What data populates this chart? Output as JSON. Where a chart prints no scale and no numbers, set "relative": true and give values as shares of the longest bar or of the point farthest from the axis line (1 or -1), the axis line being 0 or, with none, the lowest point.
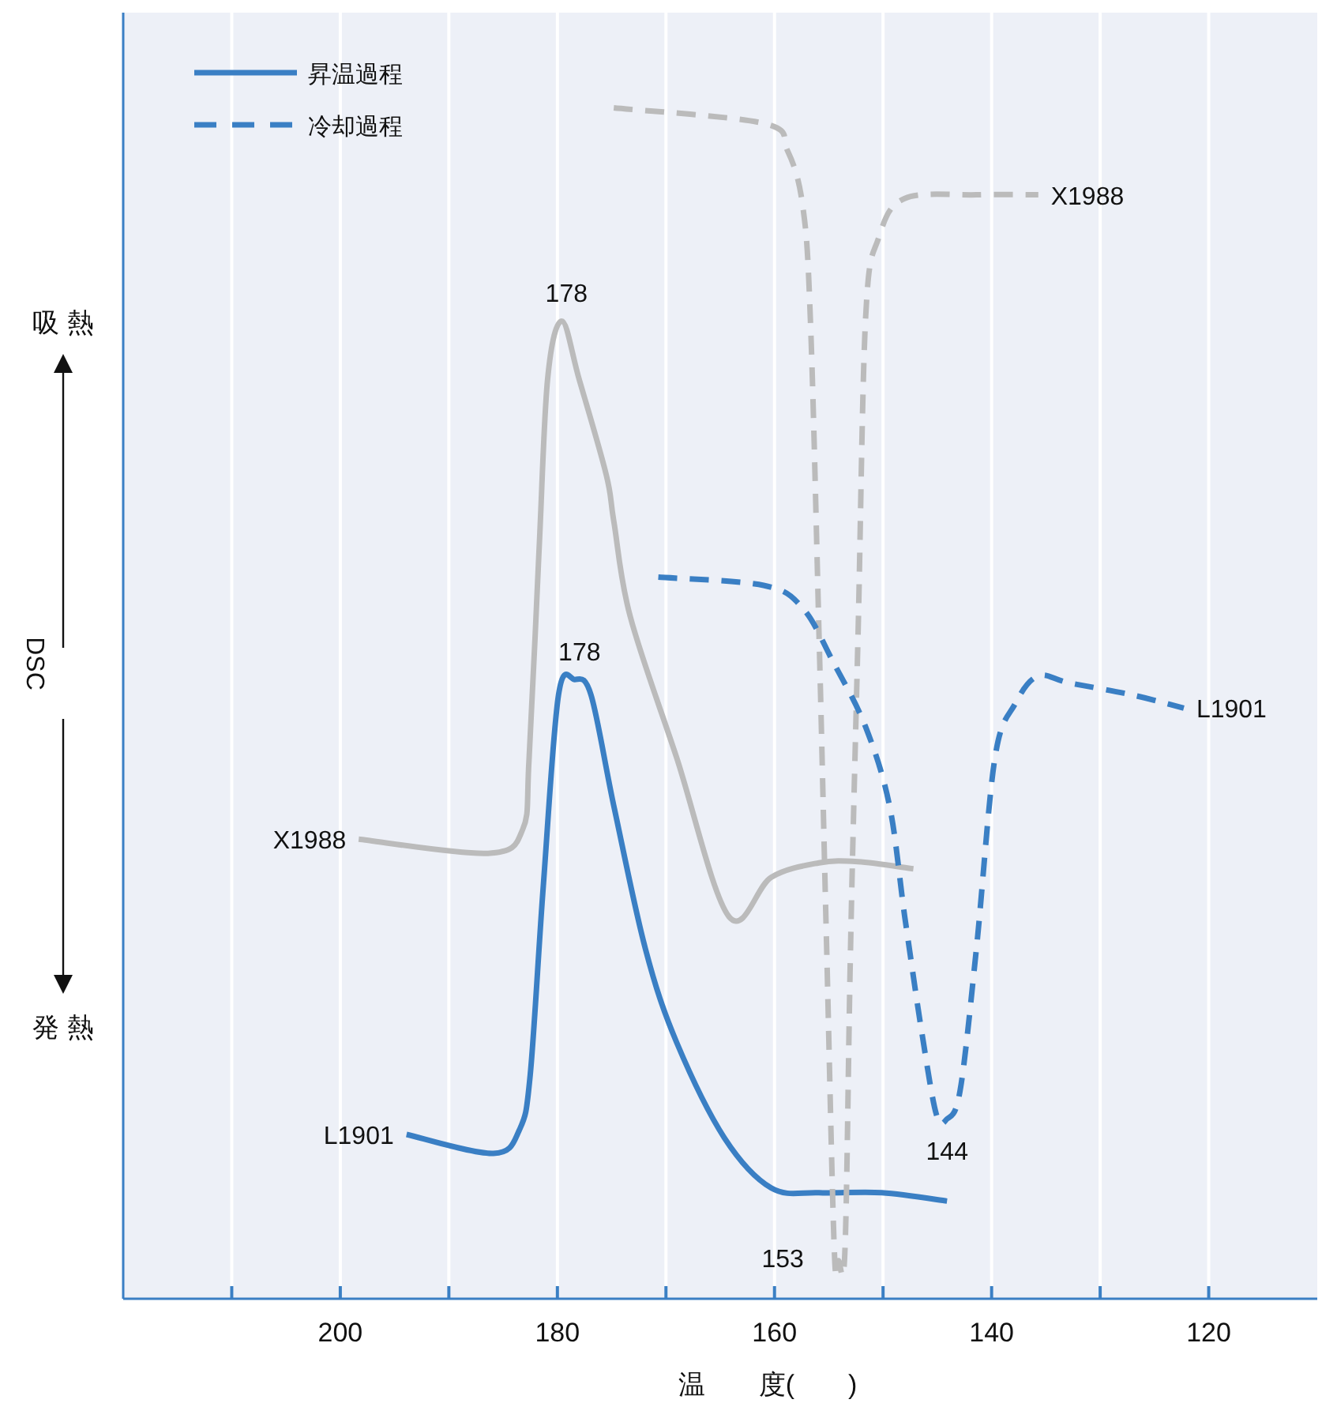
{
  "chart_data": {
    "type": "line",
    "relative": true,
    "xlabel": "温　　度(　　)",
    "ylabel": "DSC",
    "xlim": [
      220,
      110
    ],
    "xticks": [
      {
        "value": 210,
        "label": null
      },
      200,
      {
        "value": 190,
        "label": null
      },
      180,
      {
        "value": 170,
        "label": null
      },
      160,
      {
        "value": 150,
        "label": null
      },
      140,
      {
        "value": 130,
        "label": null
      },
      120
    ],
    "grid": "x",
    "legend": "top left",
    "marker": "none",
    "series": [
      {
        "name": "X1988",
        "color": "#bbbbbb",
        "line_style": "solid",
        "x": [
          198.3,
          186.4,
          183.2,
          182.6,
          181.7,
          180.9,
          179.6,
          178,
          175.5,
          174.8,
          173.3,
          169,
          164.2,
          160.3,
          155.9,
          152.3,
          147.2
        ],
        "values": [
          0.386,
          0.374,
          0.394,
          0.454,
          0.626,
          0.772,
          0.821,
          0.772,
          0.692,
          0.653,
          0.573,
          0.454,
          0.321,
          0.354,
          0.366,
          0.367,
          0.361
        ]
      },
      {
        "name": "L1901",
        "color": "#3a7fc4",
        "line_style": "solid",
        "x": [
          193.9,
          185.9,
          183.5,
          182.5,
          181.3,
          179.9,
          178.4,
          176.9,
          174.8,
          171.9,
          169,
          164.6,
          160.3,
          155.9,
          150.1,
          144.1
        ],
        "values": [
          0.138,
          0.122,
          0.142,
          0.188,
          0.347,
          0.507,
          0.52,
          0.507,
          0.414,
          0.294,
          0.215,
          0.135,
          0.093,
          0.089,
          0.089,
          0.082
        ]
      },
      {
        "name": "X1988",
        "color": "#bbbbbb",
        "line_style": "dashed",
        "x": [
          174.8,
          161,
          158.8,
          157.4,
          156.7,
          155.9,
          155.2,
          154.5,
          154.1,
          153.5,
          153,
          152.3,
          151.6,
          150.4,
          148,
          141.4,
          135.7
        ],
        "values": [
          1.0,
          0.987,
          0.964,
          0.918,
          0.825,
          0.56,
          0.294,
          0.042,
          0.032,
          0.042,
          0.294,
          0.56,
          0.825,
          0.891,
          0.924,
          0.927,
          0.927
        ]
      },
      {
        "name": "L1901",
        "color": "#3a7fc4",
        "line_style": "dashed",
        "x": [
          170.7,
          161,
          157.4,
          154.5,
          151.6,
          149.4,
          148,
          146.5,
          145.1,
          144.1,
          142.9,
          141.4,
          139.7,
          137.8,
          135.7,
          132.8,
          127,
          122.3
        ],
        "values": [
          0.606,
          0.599,
          0.58,
          0.533,
          0.48,
          0.414,
          0.321,
          0.228,
          0.155,
          0.151,
          0.175,
          0.294,
          0.454,
          0.5,
          0.523,
          0.517,
          0.507,
          0.496
        ]
      }
    ],
    "annotations": [
      "昇温過程",
      "冷却過程",
      "吸 熱",
      "発 熱",
      {
        "text": "178",
        "x": 179.6,
        "y": 0.821
      },
      {
        "text": "178",
        "x": 178.4,
        "y": 0.52
      },
      {
        "text": "153",
        "x": 154.1,
        "y": 0.032
      },
      {
        "text": "144",
        "x": 144.1,
        "y": 0.151
      }
    ]
  }
}
